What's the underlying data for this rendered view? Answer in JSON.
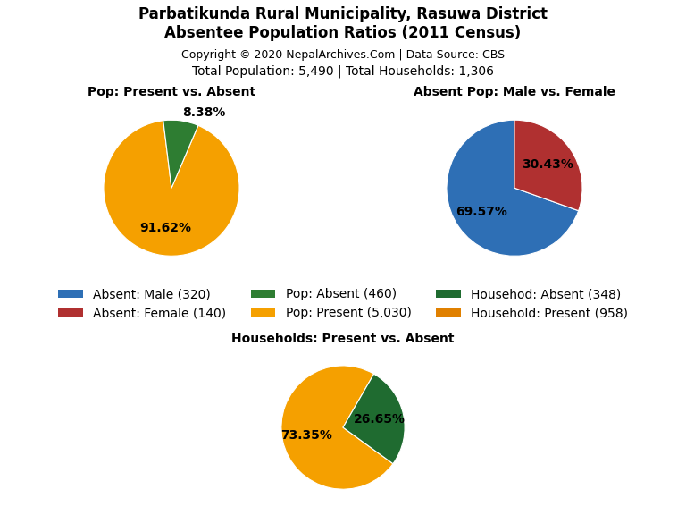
{
  "title": "Parbatikunda Rural Municipality, Rasuwa District\nAbsentee Population Ratios (2011 Census)",
  "subtitle": [
    "Copyright © 2020 NepalArchives.Com | Data Source: CBS",
    "Total Population: 5,490 | Total Households: 1,306"
  ],
  "legend": "center",
  "legend_entries": [
    {
      "name": "Absent: Male (320)",
      "color": "#2E6FB5"
    },
    {
      "name": "Absent: Female (140)",
      "color": "#B03030"
    },
    {
      "name": "Pop: Absent (460)",
      "color": "#2E7D32"
    },
    {
      "name": "Pop: Present (5,030)",
      "color": "#F5A000"
    },
    {
      "name": "Househod: Absent (348)",
      "color": "#1F6B30"
    },
    {
      "name": "Household: Present (958)",
      "color": "#E08000"
    }
  ],
  "chart_data": [
    {
      "type": "pie",
      "title": "Pop: Present vs. Absent",
      "values": [
        91.62,
        8.38
      ],
      "value_labels": [
        "91.62%",
        "8.38%"
      ],
      "colors": [
        "#F5A000",
        "#2E7D32"
      ],
      "data_labels": true
    },
    {
      "type": "pie",
      "title": "Absent Pop: Male vs. Female",
      "values": [
        69.57,
        30.43
      ],
      "value_labels": [
        "69.57%",
        "30.43%"
      ],
      "colors": [
        "#2E6FB5",
        "#B03030"
      ],
      "data_labels": true
    },
    {
      "type": "pie",
      "title": "Households: Present vs. Absent",
      "values": [
        73.35,
        26.65
      ],
      "value_labels": [
        "73.35%",
        "26.65%"
      ],
      "colors": [
        "#F5A000",
        "#1F6B30"
      ],
      "data_labels": true
    }
  ]
}
